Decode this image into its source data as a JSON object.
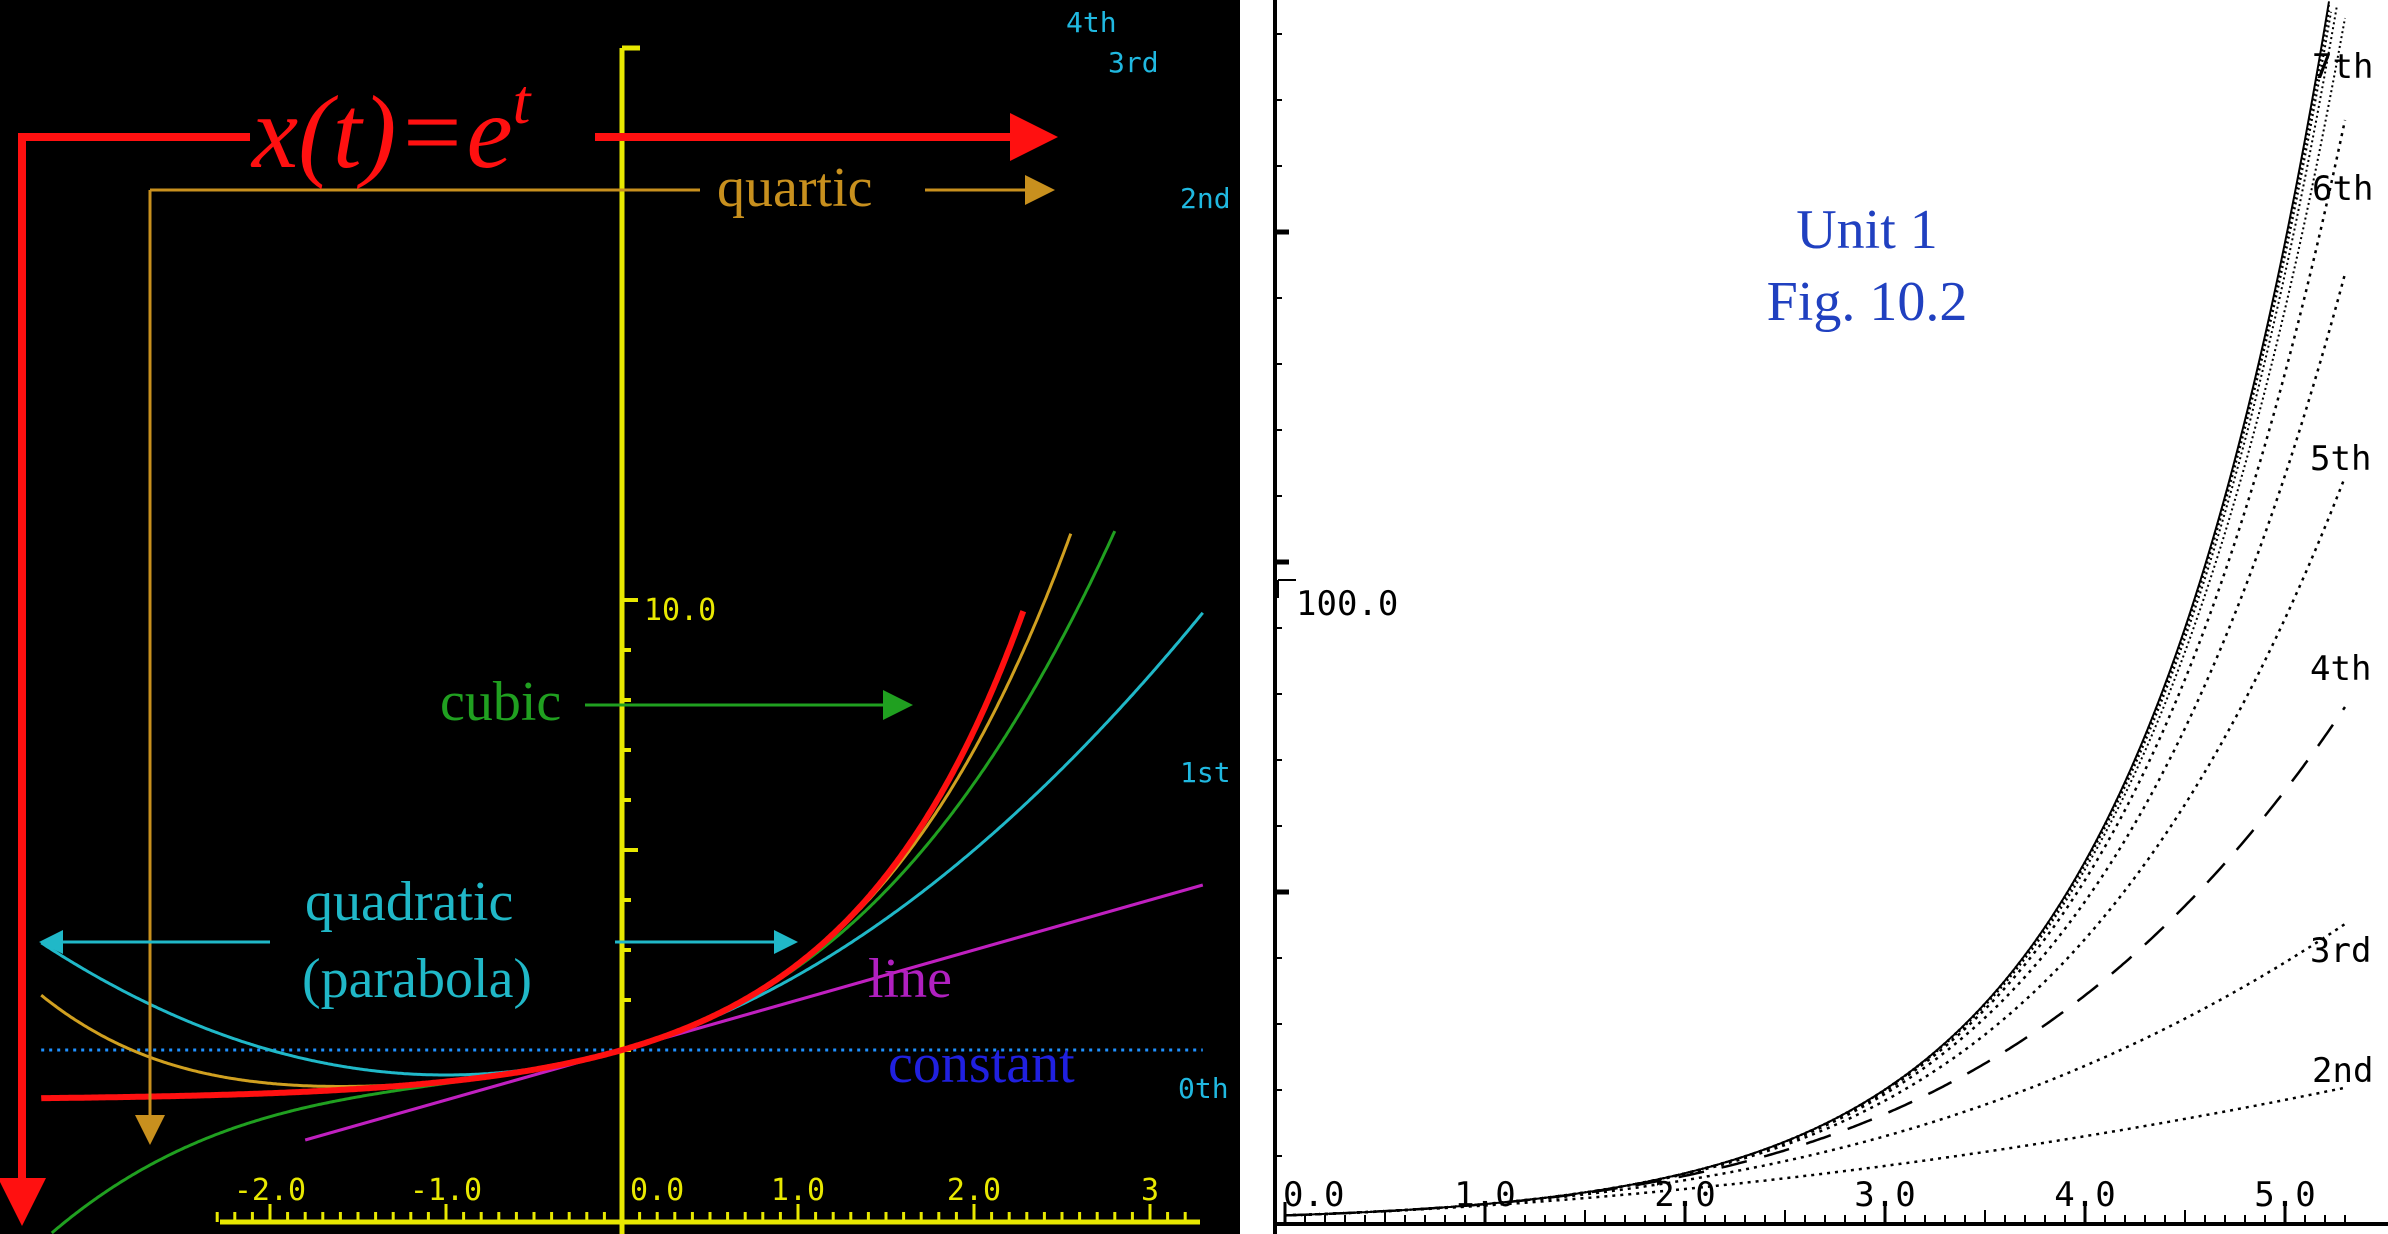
{
  "chart_data": [
    {
      "type": "line",
      "panel": "left",
      "background": "#000000",
      "title": "x(t)=e",
      "title_superscript": "t",
      "xlim": [
        -3.4,
        3.3
      ],
      "ylim": [
        -1.5,
        10.5
      ],
      "x_tick_labels": [
        "-2.0",
        "-1.0",
        "0.0",
        "1.0",
        "2.0",
        "3"
      ],
      "y_tick_labels": [
        "10.0"
      ],
      "function_color": "#ff1010",
      "series": [
        {
          "name": "0th",
          "color": "#1e90ff",
          "style": "dotted",
          "degree": 0,
          "x": [
            -3.3,
            3.3
          ],
          "y": [
            1,
            1
          ]
        },
        {
          "name": "1st",
          "color": "#c020c0",
          "style": "solid",
          "degree": 1,
          "x": [
            -1.8,
            3.3
          ],
          "y": [
            -0.8,
            4.3
          ]
        },
        {
          "name": "2nd",
          "color": "#20b8c8",
          "style": "solid",
          "degree": 2,
          "x": [
            -3.3,
            3.3
          ]
        },
        {
          "name": "3rd",
          "color": "#20a020",
          "style": "solid",
          "degree": 3,
          "x": [
            -3.3,
            2.8
          ]
        },
        {
          "name": "4th",
          "color": "#d0a020",
          "style": "solid",
          "degree": 4,
          "x": [
            -3.3,
            2.55
          ]
        }
      ],
      "annotations": {
        "quartic": "quartic",
        "cubic": "cubic",
        "quadratic": "quadratic",
        "parabola": "(parabola)",
        "line": "line",
        "constant": "constant"
      },
      "annotation_colors": {
        "quartic": "#c8901e",
        "cubic": "#20a020",
        "quadratic": "#20b8c8",
        "line": "#b020c0",
        "constant": "#2020e0"
      }
    },
    {
      "type": "line",
      "panel": "right",
      "background": "#ffffff",
      "caption_line1": "Unit 1",
      "caption_line2": "Fig. 10.2",
      "caption_color": "#2040c0",
      "xlim": [
        0,
        5.3
      ],
      "ylim": [
        0,
        210
      ],
      "x_tick_labels": [
        "0.0",
        "1.0",
        "2.0",
        "3.0",
        "4.0",
        "5.0"
      ],
      "y_tick_labels": [
        "100.0"
      ],
      "series": [
        {
          "name": "2nd",
          "degree": 2,
          "style": "dotted"
        },
        {
          "name": "3rd",
          "degree": 3,
          "style": "dotted"
        },
        {
          "name": "4th",
          "degree": 4,
          "style": "dashed"
        },
        {
          "name": "5th",
          "degree": 5,
          "style": "dotted"
        },
        {
          "name": "6th",
          "degree": 6,
          "style": "dotted"
        },
        {
          "name": "7th",
          "degree": 7,
          "style": "dotted"
        }
      ]
    }
  ]
}
